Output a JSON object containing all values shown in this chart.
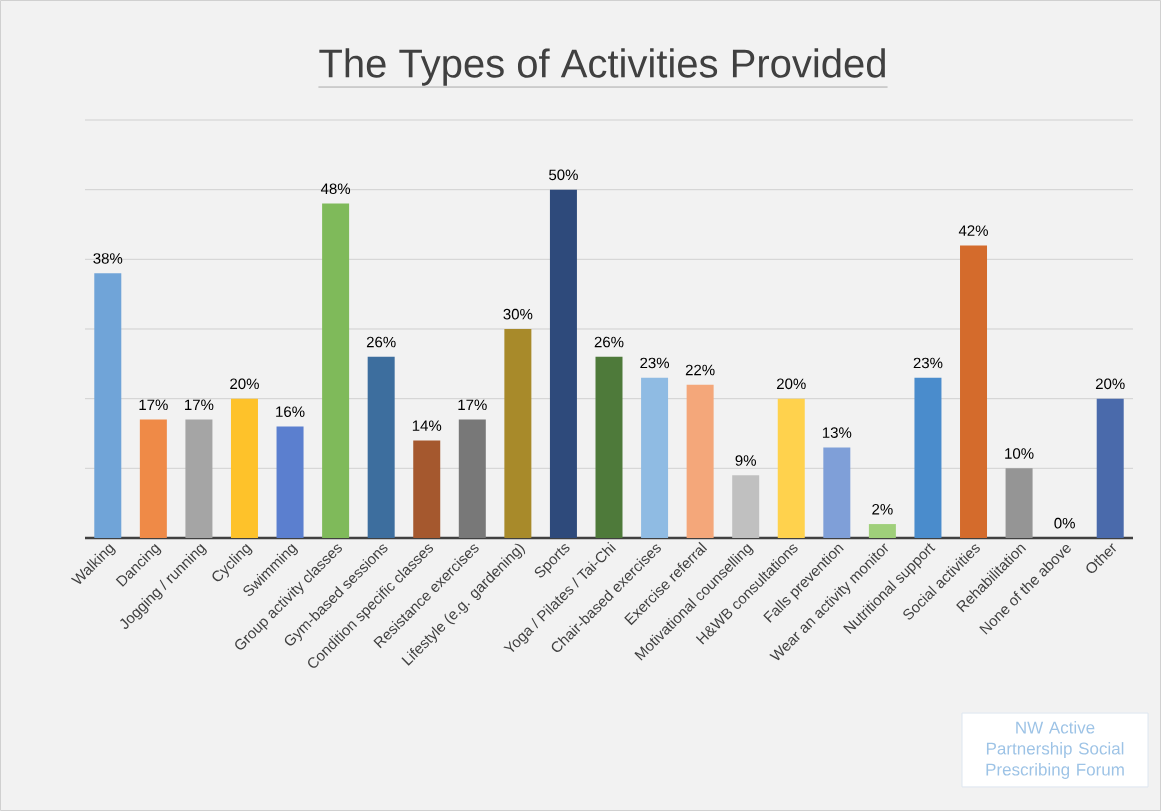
{
  "chart_data": {
    "type": "bar",
    "title": "The Types of Activities Provided",
    "categories": [
      "Walking",
      "Dancing",
      "Jogging / running",
      "Cycling",
      "Swimming",
      "Group activity classes",
      "Gym-based sessions",
      "Condition specific classes",
      "Resistance exercises",
      "Lifestyle (e.g. gardening)",
      "Sports",
      "Yoga / Pilates / Tai-Chi",
      "Chair-based exercises",
      "Exercise referral",
      "Motivational counselling",
      "H&WB consultations",
      "Falls prevention",
      "Wear an activity monitor",
      "Nutritional support",
      "Social activities",
      "Rehabilitation",
      "None of the above",
      "Other"
    ],
    "values": [
      38,
      17,
      17,
      20,
      16,
      48,
      26,
      14,
      17,
      30,
      50,
      26,
      23,
      22,
      9,
      20,
      13,
      2,
      23,
      42,
      10,
      0,
      20
    ],
    "value_labels": [
      "38%",
      "17%",
      "17%",
      "20%",
      "16%",
      "48%",
      "26%",
      "14%",
      "17%",
      "30%",
      "50%",
      "26%",
      "23%",
      "22%",
      "9%",
      "20%",
      "13%",
      "2%",
      "23%",
      "42%",
      "10%",
      "0%",
      "20%"
    ],
    "colors": [
      "#70a4d8",
      "#ef8a47",
      "#a5a5a5",
      "#fec22a",
      "#5b7fcf",
      "#7fba5a",
      "#3d6e9e",
      "#a5582e",
      "#787878",
      "#a88a2a",
      "#2e4a7b",
      "#4e7a3a",
      "#8fbbe3",
      "#f4a77a",
      "#c0c0c0",
      "#ffd24d",
      "#7f9fd8",
      "#9fcf7a",
      "#4a8ccc",
      "#d46b2c",
      "#959595",
      "#5b7fcf",
      "#4a6aab"
    ],
    "ylim": [
      0,
      60
    ],
    "yticks": [
      {
        "value": 0,
        "label": null
      },
      {
        "value": 10,
        "label": null
      },
      {
        "value": 20,
        "label": null
      },
      {
        "value": 30,
        "label": null
      },
      {
        "value": 40,
        "label": null
      },
      {
        "value": 50,
        "label": null
      },
      {
        "value": 60,
        "label": null
      }
    ],
    "grid": "y",
    "tick_labels": "x",
    "annotations": [
      "NW Active Partnership Social Prescribing Forum"
    ]
  }
}
